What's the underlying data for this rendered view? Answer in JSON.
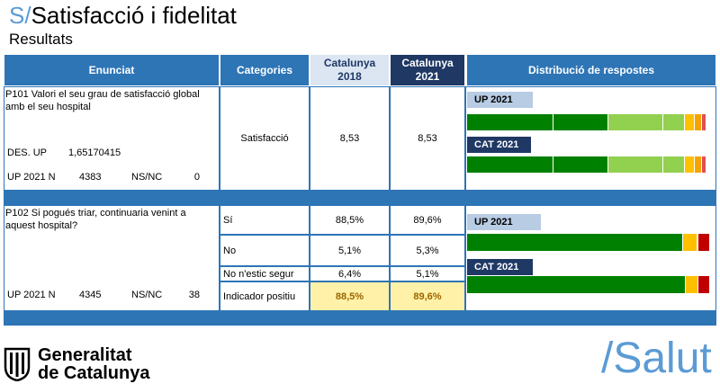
{
  "header": {
    "prefix": "S/",
    "title": "Satisfacció i fidelitat",
    "subtitle": "Resultats"
  },
  "table": {
    "columns": [
      "Enunciat",
      "Categories",
      "Catalunya 2018",
      "Catalunya 2021",
      "Distribució de respostes"
    ],
    "questions": [
      {
        "text": "P101 Valori el seu grau de satisfacció global amb el seu hospital",
        "des_label": "DES. UP",
        "des_value": "1,65170415",
        "n_label": "UP 2021 N",
        "n": "4383",
        "nsnc_label": "NS/NC",
        "nsnc": "0",
        "rows": [
          {
            "category": "Satisfacció",
            "cat2018": "8,53",
            "cat2021": "8,53"
          }
        ],
        "distribution": [
          {
            "label": "UP 2021",
            "segments": [
              {
                "value": 36,
                "color": "#008000"
              },
              {
                "value": 23,
                "color": "#008000"
              },
              {
                "value": 23,
                "color": "#92d050"
              },
              {
                "value": 9,
                "color": "#92d050"
              },
              {
                "value": 4,
                "color": "#ffc000"
              },
              {
                "value": 3,
                "color": "#f4a300"
              },
              {
                "value": 2,
                "color": "#e05050"
              }
            ]
          },
          {
            "label": "CAT 2021",
            "segments": [
              {
                "value": 36,
                "color": "#008000"
              },
              {
                "value": 23,
                "color": "#008000"
              },
              {
                "value": 23,
                "color": "#92d050"
              },
              {
                "value": 9,
                "color": "#92d050"
              },
              {
                "value": 4,
                "color": "#ffc000"
              },
              {
                "value": 3,
                "color": "#f4a300"
              },
              {
                "value": 2,
                "color": "#e05050"
              }
            ]
          }
        ]
      },
      {
        "text": "P102 Si pogués triar, continuaria venint a aquest hospital?",
        "n_label": "UP 2021 N",
        "n": "4345",
        "nsnc_label": "NS/NC",
        "nsnc": "38",
        "rows": [
          {
            "category": "Sí",
            "cat2018": "88,5%",
            "cat2021": "89,6%"
          },
          {
            "category": "No",
            "cat2018": "5,1%",
            "cat2021": "5,3%"
          },
          {
            "category": "No n'estic segur",
            "cat2018": "6,4%",
            "cat2021": "5,1%"
          },
          {
            "category": "Indicador positiu",
            "cat2018": "88,5%",
            "cat2021": "89,6%"
          }
        ],
        "distribution": [
          {
            "label": "UP 2021",
            "segments": [
              {
                "value": 89,
                "color": "#008000"
              },
              {
                "value": 6,
                "color": "#ffc000"
              },
              {
                "value": 5,
                "color": "#c00000"
              }
            ]
          },
          {
            "label": "CAT 2021",
            "segments": [
              {
                "value": 90,
                "color": "#008000"
              },
              {
                "value": 5,
                "color": "#ffc000"
              },
              {
                "value": 5,
                "color": "#c00000"
              }
            ]
          }
        ]
      }
    ]
  },
  "footer": {
    "logo_line1": "Generalitat",
    "logo_line2": "de Catalunya",
    "brand": "/Salut"
  }
}
